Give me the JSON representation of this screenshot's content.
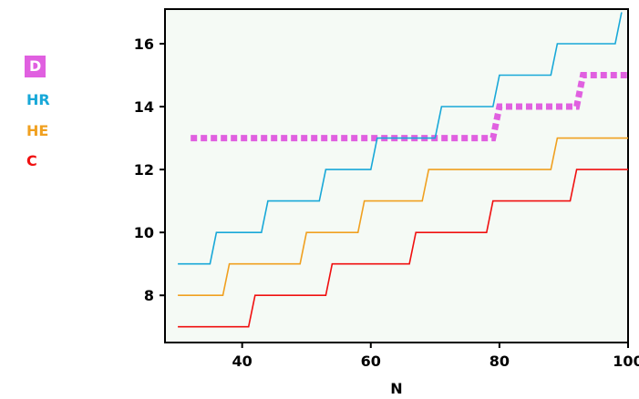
{
  "chart_data": {
    "type": "line",
    "xlabel": "N",
    "ylabel": "",
    "xlim": [
      28,
      100
    ],
    "ylim": [
      6.5,
      17.1
    ],
    "xticks": [
      40,
      60,
      80,
      100
    ],
    "yticks": [
      8,
      10,
      12,
      14,
      16
    ],
    "grid": false,
    "legend_placement": "left",
    "background": "#f5faf5",
    "series": [
      {
        "name": "D",
        "color": "#e060e0",
        "style": "dotted-thick",
        "legend_boxed": true,
        "points": [
          [
            32,
            13
          ],
          [
            79,
            13
          ],
          [
            80,
            14
          ],
          [
            92,
            14
          ],
          [
            93,
            15
          ],
          [
            100,
            15
          ]
        ]
      },
      {
        "name": "HR",
        "color": "#18a8d8",
        "style": "solid",
        "points": [
          [
            30,
            9
          ],
          [
            35,
            9
          ],
          [
            36,
            10
          ],
          [
            43,
            10
          ],
          [
            44,
            11
          ],
          [
            52,
            11
          ],
          [
            53,
            12
          ],
          [
            60,
            12
          ],
          [
            61,
            13
          ],
          [
            70,
            13
          ],
          [
            71,
            14
          ],
          [
            79,
            14
          ],
          [
            80,
            15
          ],
          [
            88,
            15
          ],
          [
            89,
            16
          ],
          [
            98,
            16
          ],
          [
            99,
            17
          ]
        ]
      },
      {
        "name": "HE",
        "color": "#f0a020",
        "style": "solid",
        "points": [
          [
            30,
            8
          ],
          [
            37,
            8
          ],
          [
            38,
            9
          ],
          [
            49,
            9
          ],
          [
            50,
            10
          ],
          [
            58,
            10
          ],
          [
            59,
            11
          ],
          [
            68,
            11
          ],
          [
            69,
            12
          ],
          [
            77,
            12
          ],
          [
            78,
            12
          ],
          [
            88,
            12
          ],
          [
            89,
            13
          ],
          [
            100,
            13
          ]
        ]
      },
      {
        "name": "C",
        "color": "#f01010",
        "style": "solid",
        "points": [
          [
            30,
            7
          ],
          [
            41,
            7
          ],
          [
            42,
            8
          ],
          [
            53,
            8
          ],
          [
            54,
            9
          ],
          [
            66,
            9
          ],
          [
            67,
            10
          ],
          [
            78,
            10
          ],
          [
            79,
            11
          ],
          [
            91,
            11
          ],
          [
            92,
            12
          ],
          [
            100,
            12
          ]
        ]
      }
    ]
  }
}
